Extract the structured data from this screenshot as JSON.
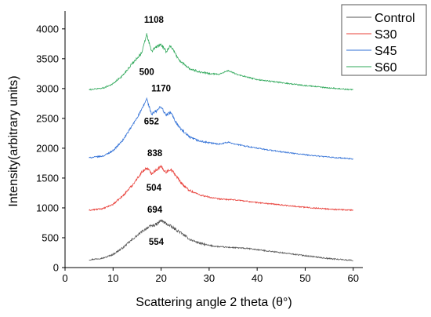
{
  "chart_data": {
    "type": "line",
    "title": "",
    "xlabel": "Scattering angle 2 theta (θ°)",
    "ylabel": "Intensity(arbitrary units)",
    "xlim": [
      0,
      62
    ],
    "ylim": [
      0,
      4300
    ],
    "xticks": [
      "0",
      "10",
      "20",
      "30",
      "40",
      "50",
      "60"
    ],
    "yticks": [
      "0",
      "500",
      "1000",
      "1500",
      "2000",
      "2500",
      "3000",
      "3500",
      "4000"
    ],
    "grid": false,
    "legend_position": "top-right",
    "series": [
      {
        "name": "Control",
        "color": "#555555",
        "x": [
          5,
          8,
          10,
          12,
          14,
          16,
          17,
          18,
          19,
          20,
          21,
          22,
          23,
          24,
          25,
          26,
          28,
          30,
          32,
          34,
          36,
          38,
          40,
          45,
          50,
          55,
          60
        ],
        "y": [
          130,
          160,
          220,
          330,
          470,
          600,
          660,
          700,
          720,
          790,
          740,
          690,
          640,
          590,
          530,
          470,
          410,
          370,
          350,
          340,
          330,
          320,
          300,
          250,
          200,
          150,
          120
        ]
      },
      {
        "name": "S30",
        "color": "#e8403a",
        "x": [
          5,
          8,
          10,
          12,
          14,
          16,
          17,
          18,
          19,
          20,
          21,
          22,
          23,
          24,
          25,
          26,
          28,
          30,
          32,
          34,
          36,
          38,
          40,
          45,
          50,
          55,
          60
        ],
        "y": [
          960,
          990,
          1060,
          1200,
          1380,
          1600,
          1670,
          1580,
          1640,
          1690,
          1600,
          1650,
          1550,
          1440,
          1350,
          1290,
          1220,
          1180,
          1150,
          1140,
          1130,
          1110,
          1090,
          1050,
          1010,
          980,
          960
        ]
      },
      {
        "name": "S45",
        "color": "#2f6fd6",
        "x": [
          5,
          8,
          10,
          12,
          14,
          16,
          17,
          18,
          19,
          20,
          21,
          22,
          23,
          24,
          25,
          26,
          28,
          30,
          32,
          34,
          36,
          38,
          40,
          45,
          50,
          55,
          60
        ],
        "y": [
          1840,
          1870,
          1960,
          2130,
          2380,
          2650,
          2830,
          2570,
          2620,
          2700,
          2550,
          2600,
          2450,
          2330,
          2250,
          2180,
          2120,
          2090,
          2070,
          2100,
          2060,
          2030,
          2000,
          1940,
          1890,
          1850,
          1820
        ]
      },
      {
        "name": "S60",
        "color": "#2fa85a",
        "x": [
          5,
          8,
          10,
          12,
          14,
          16,
          17,
          18,
          19,
          20,
          21,
          22,
          23,
          24,
          25,
          26,
          28,
          30,
          32,
          34,
          36,
          38,
          40,
          45,
          50,
          55,
          60
        ],
        "y": [
          2980,
          3010,
          3080,
          3220,
          3420,
          3600,
          3910,
          3620,
          3700,
          3740,
          3620,
          3720,
          3580,
          3450,
          3400,
          3330,
          3280,
          3250,
          3240,
          3300,
          3230,
          3190,
          3150,
          3100,
          3050,
          3010,
          2980
        ]
      }
    ],
    "annotations": [
      {
        "text": "1108",
        "x": 18.5,
        "y": 4100
      },
      {
        "text": "500",
        "x": 17,
        "y": 3230
      },
      {
        "text": "1170",
        "x": 20,
        "y": 2955
      },
      {
        "text": "652",
        "x": 18,
        "y": 2400
      },
      {
        "text": "838",
        "x": 18.7,
        "y": 1870
      },
      {
        "text": "504",
        "x": 18.5,
        "y": 1290
      },
      {
        "text": "694",
        "x": 18.7,
        "y": 920
      },
      {
        "text": "554",
        "x": 19,
        "y": 380
      }
    ]
  }
}
